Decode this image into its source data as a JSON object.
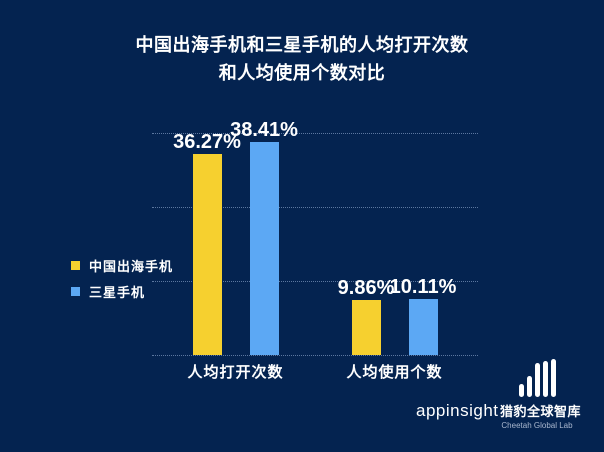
{
  "title": {
    "line1": "中国出海手机和三星手机的人均打开次数",
    "line2": "和人均使用个数对比"
  },
  "legend": {
    "items": [
      {
        "label": "中国出海手机",
        "color": "#f6d02f"
      },
      {
        "label": "三星手机",
        "color": "#5ca8f4"
      }
    ]
  },
  "chart_data": {
    "type": "bar",
    "title": "中国出海手机和三星手机的人均打开次数和人均使用个数对比",
    "categories": [
      "人均打开次数",
      "人均使用个数"
    ],
    "series": [
      {
        "name": "中国出海手机",
        "color": "#f6d02f",
        "values": [
          36.27,
          9.86
        ],
        "labels": [
          "36.27%",
          "9.86%"
        ]
      },
      {
        "name": "三星手机",
        "color": "#5ca8f4",
        "values": [
          38.41,
          10.11
        ],
        "labels": [
          "38.41%",
          "10.11%"
        ]
      }
    ],
    "value_format": "percent",
    "ylim": [
      0,
      40
    ],
    "grid": "horizontal-dotted",
    "legend_position": "middle-left"
  },
  "branding": {
    "app_logo_text": "appinsight",
    "lab_logo_icon": "ascending-bars-icon",
    "lab_name_cn": "猎豹全球智库",
    "lab_name_en": "Cheetah Global Lab"
  },
  "colors": {
    "background": "#042350",
    "bar_yellow": "#f6d02f",
    "bar_blue": "#5ca8f4",
    "text": "#ffffff",
    "muted_text": "#a9b7ce",
    "gridline": "rgba(165,190,225,0.55)"
  }
}
